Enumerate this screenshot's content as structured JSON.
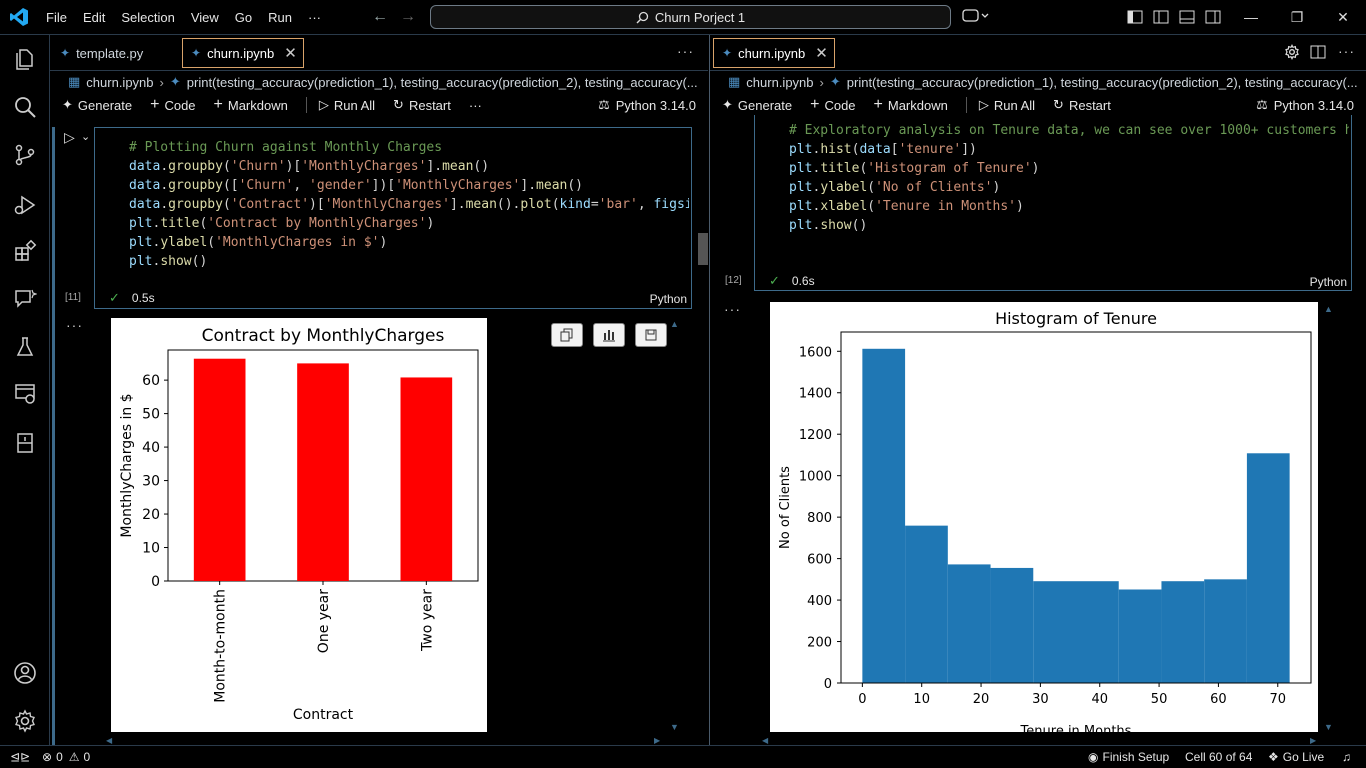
{
  "titlebar": {
    "menu": [
      "File",
      "Edit",
      "Selection",
      "View",
      "Go",
      "Run",
      "···"
    ],
    "search_text": "Churn Porject 1"
  },
  "left": {
    "tabs": [
      {
        "label": "template.py",
        "active": false
      },
      {
        "label": "churn.ipynb",
        "active": true
      }
    ],
    "breadcrumb": [
      "churn.ipynb",
      "print(testing_accuracy(prediction_1), testing_accuracy(prediction_2), testing_accuracy(..."
    ],
    "toolbar": {
      "generate": "Generate",
      "code": "Code",
      "markdown": "Markdown",
      "run_all": "Run All",
      "restart": "Restart",
      "more": "···",
      "kernel": "Python 3.14.0"
    },
    "cell": {
      "exec_count": "[11]",
      "time": "0.5s",
      "lang": "Python"
    },
    "chart_data": {
      "type": "bar",
      "title": "Contract by MonthlyCharges",
      "xlabel": "Contract",
      "ylabel": "MonthlyCharges in $",
      "categories": [
        "Month-to-month",
        "One year",
        "Two year"
      ],
      "values": [
        66.4,
        65.0,
        60.8
      ],
      "ylim": [
        0,
        69
      ],
      "yticks": [
        0,
        10,
        20,
        30,
        40,
        50,
        60
      ],
      "color": "#ff0000",
      "grid": false
    }
  },
  "right": {
    "tabs": [
      {
        "label": "churn.ipynb",
        "active": true
      }
    ],
    "breadcrumb": [
      "churn.ipynb",
      "print(testing_accuracy(prediction_1), testing_accuracy(prediction_2), testing_accuracy(..."
    ],
    "toolbar": {
      "generate": "Generate",
      "code": "Code",
      "markdown": "Markdown",
      "run_all": "Run All",
      "restart": "Restart",
      "kernel": "Python 3.14.0"
    },
    "cell": {
      "exec_count": "[12]",
      "time": "0.6s",
      "lang": "Python"
    },
    "chart_data": {
      "type": "bar",
      "title": "Histogram of Tenure",
      "xlabel": "Tenure in Months",
      "ylabel": "No of Clients",
      "bin_edges": [
        0,
        7.2,
        14.4,
        21.6,
        28.8,
        36,
        43.2,
        50.4,
        57.6,
        64.8,
        72
      ],
      "values": [
        1612,
        759,
        572,
        555,
        491,
        491,
        451,
        491,
        500,
        1108
      ],
      "xlim": [
        -3.6,
        75.6
      ],
      "ylim": [
        0,
        1693
      ],
      "xticks": [
        0,
        10,
        20,
        30,
        40,
        50,
        60,
        70
      ],
      "yticks": [
        0,
        200,
        400,
        600,
        800,
        1000,
        1200,
        1400,
        1600
      ],
      "color": "#1f77b4",
      "grid": false
    }
  },
  "statusbar": {
    "errors": "0",
    "warnings": "0",
    "finish_setup": "Finish Setup",
    "cell_pos": "Cell 60 of 64",
    "go_live": "Go Live"
  },
  "colors": {
    "accent_border": "#3d6a8a",
    "tab_active_border": "#d9a36a",
    "vscode_blue": "#23a9f2"
  }
}
